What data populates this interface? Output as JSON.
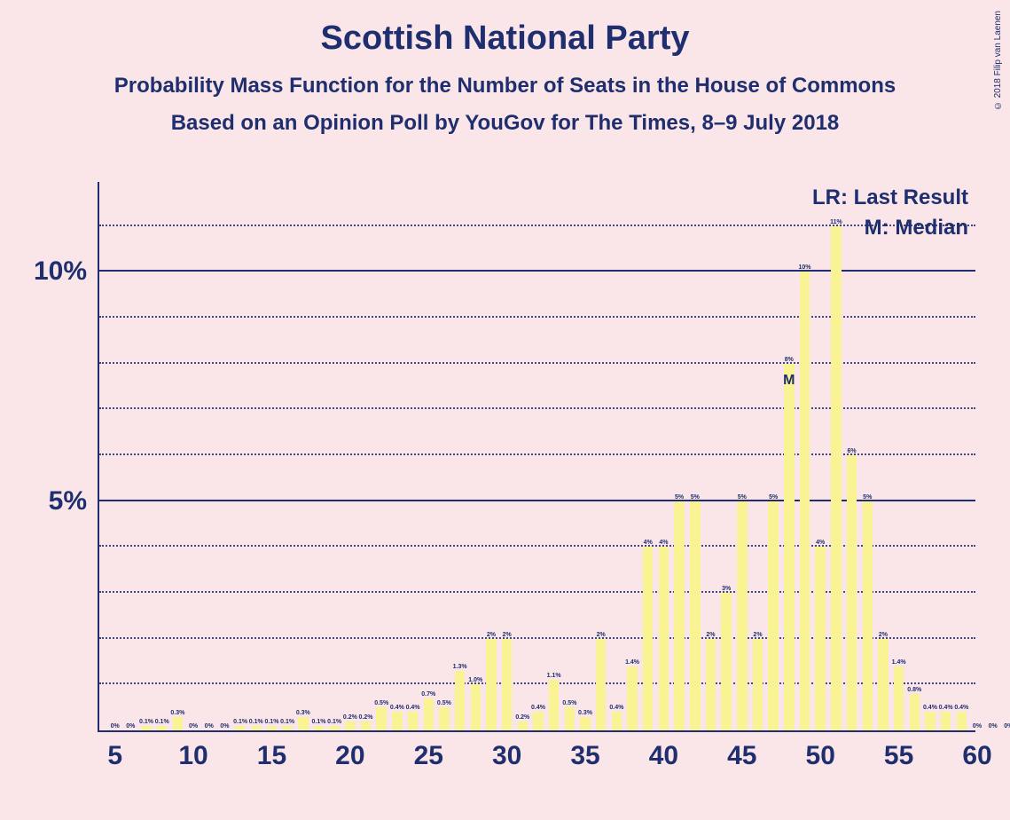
{
  "title": "Scottish National Party",
  "subtitle1": "Probability Mass Function for the Number of Seats in the House of Commons",
  "subtitle2": "Based on an Opinion Poll by YouGov for The Times, 8–9 July 2018",
  "legend": {
    "lr": "LR: Last Result",
    "m": "M: Median"
  },
  "copyright": "© 2018 Filip van Laenen",
  "chart": {
    "type": "bar",
    "bar_color": "#faf394",
    "background_color": "#fae6e8",
    "text_color": "#1e2e6e",
    "x_min": 4,
    "x_max": 60,
    "y_min": 0,
    "y_max": 12,
    "y_major_ticks": [
      5,
      10
    ],
    "y_major_labels": [
      "5%",
      "10%"
    ],
    "y_minor_ticks": [
      1,
      2,
      3,
      4,
      6,
      7,
      8,
      9,
      11
    ],
    "x_ticks": [
      5,
      10,
      15,
      20,
      25,
      30,
      35,
      40,
      45,
      50,
      55,
      60
    ],
    "x_labels": [
      "5",
      "10",
      "15",
      "20",
      "25",
      "30",
      "35",
      "40",
      "45",
      "50",
      "55",
      "60"
    ],
    "median_x": 48,
    "bars": [
      {
        "x": 5,
        "v": 0,
        "label": "0%"
      },
      {
        "x": 6,
        "v": 0,
        "label": "0%"
      },
      {
        "x": 7,
        "v": 0.1,
        "label": "0.1%"
      },
      {
        "x": 8,
        "v": 0.1,
        "label": "0.1%"
      },
      {
        "x": 9,
        "v": 0.3,
        "label": "0.3%"
      },
      {
        "x": 10,
        "v": 0,
        "label": "0%"
      },
      {
        "x": 11,
        "v": 0,
        "label": "0%"
      },
      {
        "x": 12,
        "v": 0,
        "label": "0%"
      },
      {
        "x": 13,
        "v": 0.1,
        "label": "0.1%"
      },
      {
        "x": 14,
        "v": 0.1,
        "label": "0.1%"
      },
      {
        "x": 15,
        "v": 0.1,
        "label": "0.1%"
      },
      {
        "x": 16,
        "v": 0.1,
        "label": "0.1%"
      },
      {
        "x": 17,
        "v": 0.3,
        "label": "0.3%"
      },
      {
        "x": 18,
        "v": 0.1,
        "label": "0.1%"
      },
      {
        "x": 19,
        "v": 0.1,
        "label": "0.1%"
      },
      {
        "x": 20,
        "v": 0.2,
        "label": "0.2%"
      },
      {
        "x": 21,
        "v": 0.2,
        "label": "0.2%"
      },
      {
        "x": 22,
        "v": 0.5,
        "label": "0.5%"
      },
      {
        "x": 23,
        "v": 0.4,
        "label": "0.4%"
      },
      {
        "x": 24,
        "v": 0.4,
        "label": "0.4%"
      },
      {
        "x": 25,
        "v": 0.7,
        "label": "0.7%"
      },
      {
        "x": 26,
        "v": 0.5,
        "label": "0.5%"
      },
      {
        "x": 27,
        "v": 1.3,
        "label": "1.3%"
      },
      {
        "x": 28,
        "v": 1.0,
        "label": "1.0%"
      },
      {
        "x": 29,
        "v": 2,
        "label": "2%"
      },
      {
        "x": 30,
        "v": 2,
        "label": "2%"
      },
      {
        "x": 31,
        "v": 0.2,
        "label": "0.2%"
      },
      {
        "x": 32,
        "v": 0.4,
        "label": "0.4%"
      },
      {
        "x": 33,
        "v": 1.1,
        "label": "1.1%"
      },
      {
        "x": 34,
        "v": 0.5,
        "label": "0.5%"
      },
      {
        "x": 35,
        "v": 0.3,
        "label": "0.3%"
      },
      {
        "x": 36,
        "v": 2,
        "label": "2%"
      },
      {
        "x": 37,
        "v": 0.4,
        "label": "0.4%"
      },
      {
        "x": 38,
        "v": 1.4,
        "label": "1.4%"
      },
      {
        "x": 39,
        "v": 4,
        "label": "4%"
      },
      {
        "x": 40,
        "v": 4,
        "label": "4%"
      },
      {
        "x": 41,
        "v": 5,
        "label": "5%"
      },
      {
        "x": 42,
        "v": 5,
        "label": "5%"
      },
      {
        "x": 43,
        "v": 2,
        "label": "2%"
      },
      {
        "x": 44,
        "v": 3,
        "label": "3%"
      },
      {
        "x": 45,
        "v": 5,
        "label": "5%"
      },
      {
        "x": 46,
        "v": 2,
        "label": "2%"
      },
      {
        "x": 47,
        "v": 5,
        "label": "5%"
      },
      {
        "x": 48,
        "v": 8,
        "label": "8%"
      },
      {
        "x": 49,
        "v": 10,
        "label": "10%"
      },
      {
        "x": 50,
        "v": 4,
        "label": "4%"
      },
      {
        "x": 51,
        "v": 11,
        "label": "11%"
      },
      {
        "x": 52,
        "v": 6,
        "label": "6%"
      },
      {
        "x": 53,
        "v": 5,
        "label": "5%"
      },
      {
        "x": 54,
        "v": 2,
        "label": "2%"
      },
      {
        "x": 55,
        "v": 1.4,
        "label": "1.4%"
      },
      {
        "x": 56,
        "v": 0.8,
        "label": "0.8%"
      },
      {
        "x": 57,
        "v": 0.4,
        "label": "0.4%"
      },
      {
        "x": 58,
        "v": 0.4,
        "label": "0.4%"
      },
      {
        "x": 59,
        "v": 0.4,
        "label": "0.4%"
      },
      {
        "x": 60,
        "v": 0,
        "label": "0%"
      },
      {
        "x": 61,
        "v": 0,
        "label": "0%"
      },
      {
        "x": 62,
        "v": 0,
        "label": "0%"
      }
    ]
  }
}
